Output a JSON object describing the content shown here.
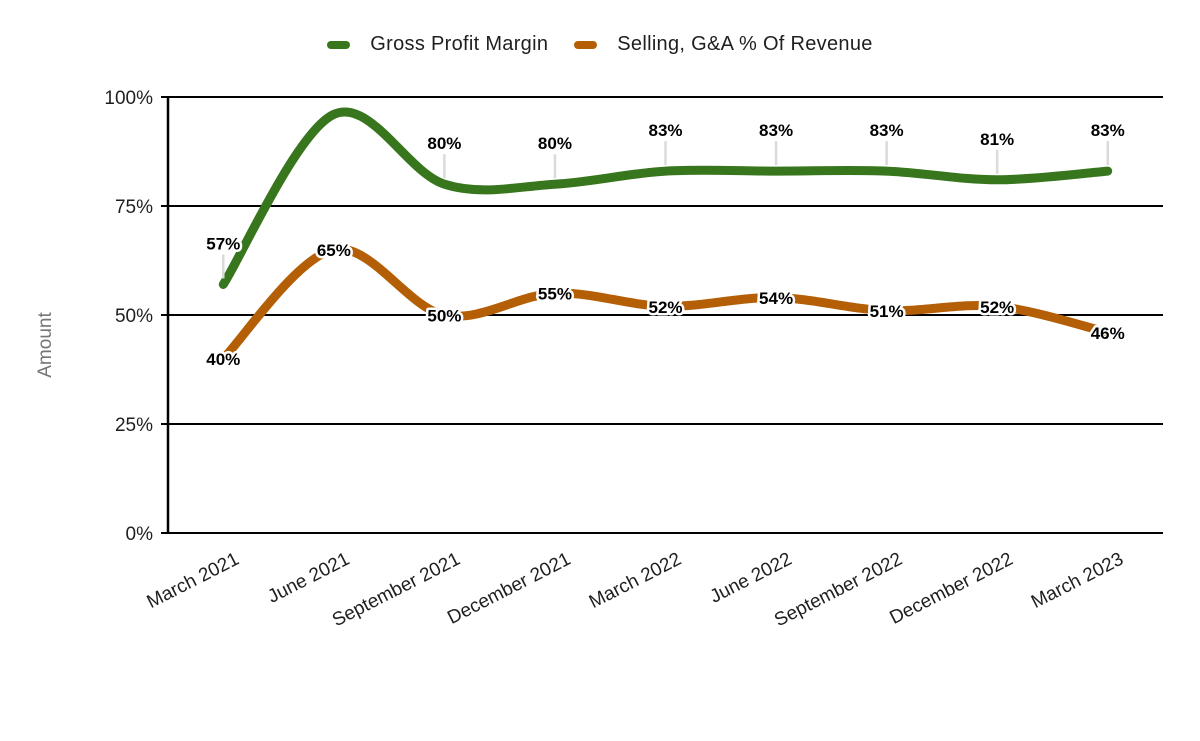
{
  "chart_data": {
    "type": "line",
    "smooth": true,
    "title": "",
    "xlabel": "",
    "ylabel": "Amount",
    "categories": [
      "March 2021",
      "June 2021",
      "September 2021",
      "December 2021",
      "March 2022",
      "June 2022",
      "September 2022",
      "December 2022",
      "March 2023"
    ],
    "series": [
      {
        "name": "Gross Profit Margin",
        "color": "#38761d",
        "values": [
          57,
          96,
          80,
          80,
          83,
          83,
          83,
          81,
          83
        ],
        "point_labels": [
          "57%",
          "",
          "80%",
          "80%",
          "83%",
          "83%",
          "83%",
          "81%",
          "83%"
        ],
        "label_placement": "above-with-leader",
        "note": "June 2021 point has no visible data label; value ~96 estimated from curve"
      },
      {
        "name": "Selling, G&A % Of Revenue",
        "color": "#b45f06",
        "values": [
          40,
          65,
          50,
          55,
          52,
          54,
          51,
          52,
          46
        ],
        "point_labels": [
          "40%",
          "65%",
          "50%",
          "55%",
          "52%",
          "54%",
          "51%",
          "52%",
          "46%"
        ],
        "label_placement": "centered-on-point"
      }
    ],
    "y_ticks": [
      "0%",
      "25%",
      "50%",
      "75%",
      "100%"
    ],
    "ylim": [
      0,
      100
    ],
    "grid": true,
    "legend_position": "top",
    "background_color": "#ffffff",
    "axis_color": "#000000",
    "tick_label_color": "#1f1f1f",
    "data_label_color": "#000000",
    "leader_line_color": "#dadada",
    "y_axis_title_color": "#757575"
  }
}
